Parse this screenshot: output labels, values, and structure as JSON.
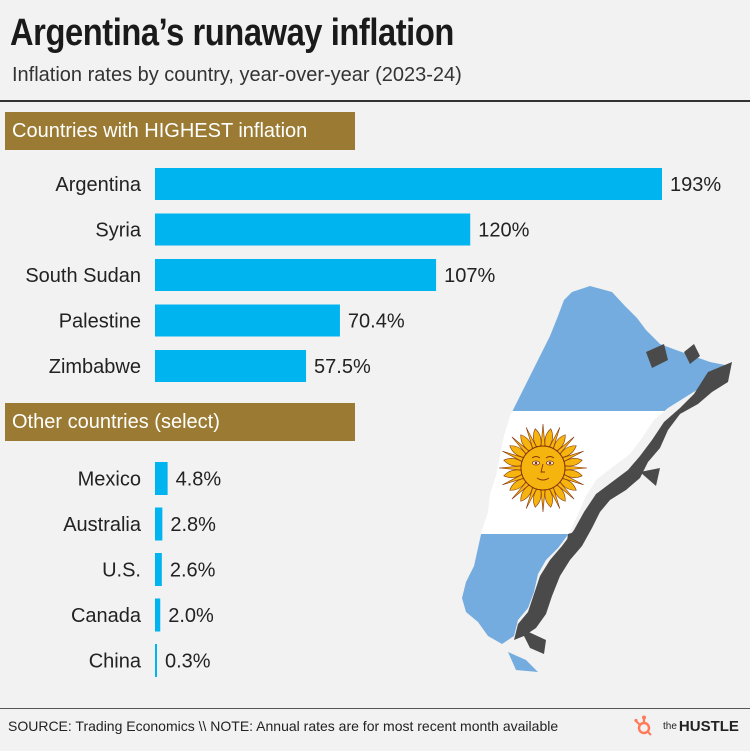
{
  "header": {
    "title": "Argentina’s runaway inflation",
    "subtitle": "Inflation rates by country, year-over-year (2023-24)"
  },
  "sections": {
    "highest": "Countries with HIGHEST inflation",
    "other": "Other countries (select)"
  },
  "footer": {
    "source": "SOURCE: Trading Economics \\\\ NOTE: Annual rates are for most recent month available",
    "brand_the": "the",
    "brand_name": "HUSTLE"
  },
  "colors": {
    "bar": "#00b4ef",
    "section_header": "#9b7b33",
    "flag_blue": "#74acdf",
    "sun": "#f6b40e",
    "coast": "#4a4a4a"
  },
  "chart_data": [
    {
      "type": "bar",
      "orientation": "horizontal",
      "title": "Countries with HIGHEST inflation",
      "categories": [
        "Argentina",
        "Syria",
        "South Sudan",
        "Palestine",
        "Zimbabwe"
      ],
      "values": [
        193,
        120,
        107,
        70.4,
        57.5
      ],
      "labels": [
        "193%",
        "120%",
        "107%",
        "70.4%",
        "57.5%"
      ],
      "xlim": [
        0,
        193
      ],
      "grid": false
    },
    {
      "type": "bar",
      "orientation": "horizontal",
      "title": "Other countries (select)",
      "categories": [
        "Mexico",
        "Australia",
        "U.S.",
        "Canada",
        "China"
      ],
      "values": [
        4.8,
        2.8,
        2.6,
        2.0,
        0.3
      ],
      "labels": [
        "4.8%",
        "2.8%",
        "2.6%",
        "2.0%",
        "0.3%"
      ],
      "xlim": [
        0,
        193
      ],
      "grid": false
    }
  ]
}
